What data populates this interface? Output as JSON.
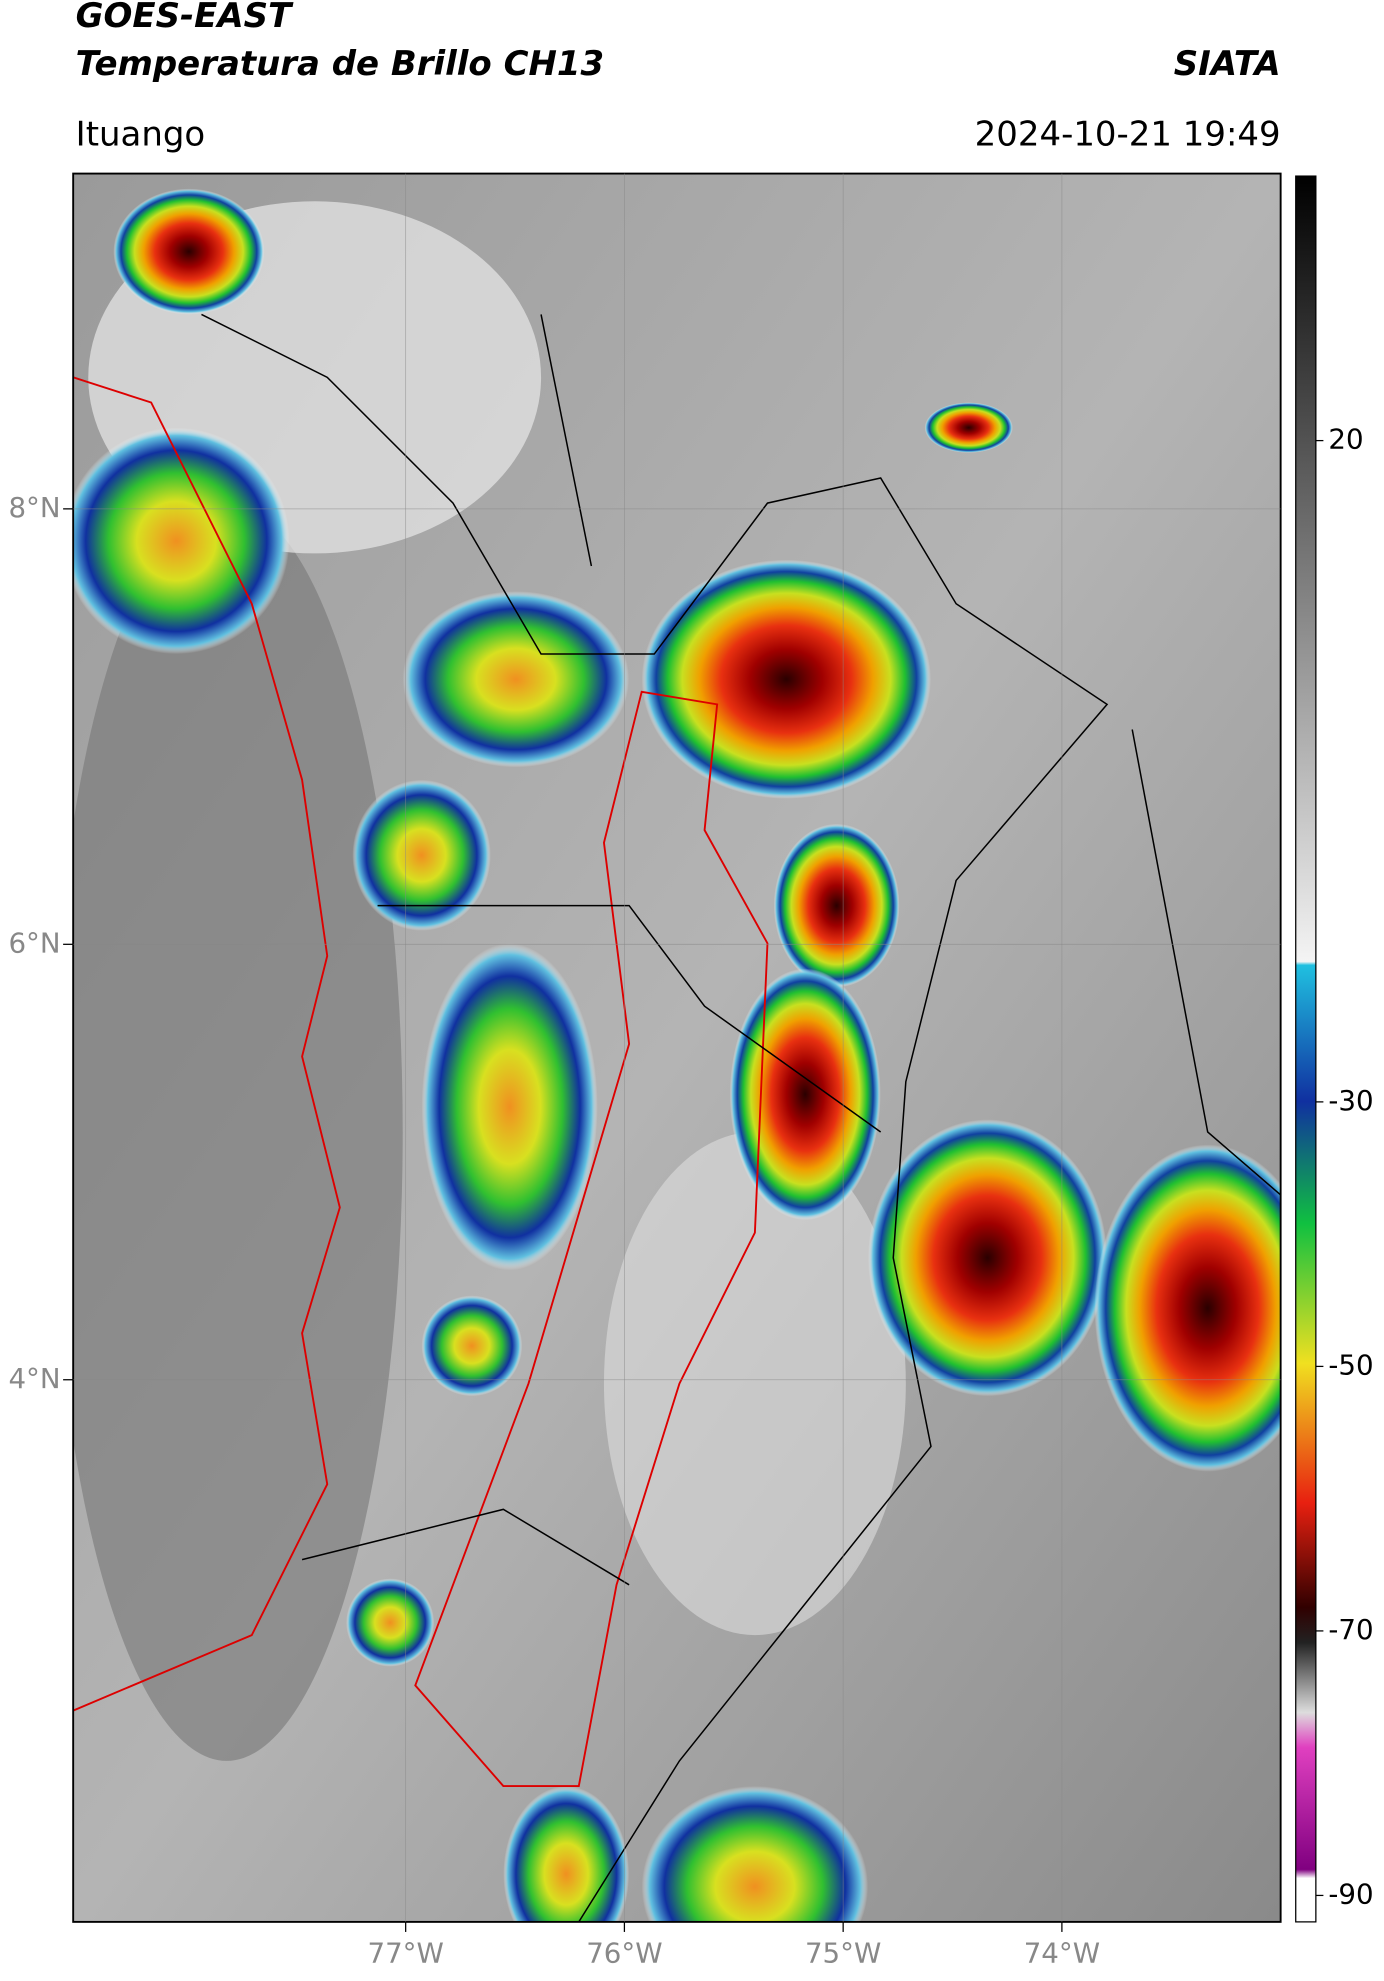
{
  "chart_data": {
    "type": "map",
    "title": "GOES-EAST",
    "subtitle": "Temperatura de Brillo CH13",
    "source": "SIATA",
    "location": "Ituango",
    "datetime": "2024-10-21 19:49",
    "xlim": [
      -78.52,
      -73.0
    ],
    "ylim": [
      1.51,
      9.54
    ],
    "xticks": [
      {
        "value": -77,
        "label": "77°W"
      },
      {
        "value": -76,
        "label": "76°W"
      },
      {
        "value": -75,
        "label": "75°W"
      },
      {
        "value": -74,
        "label": "74°W"
      }
    ],
    "yticks": [
      {
        "value": 4,
        "label": "4°N"
      },
      {
        "value": 6,
        "label": "6°N"
      },
      {
        "value": 8,
        "label": "8°N"
      }
    ],
    "grid": true,
    "colorbar": {
      "lim": [
        -92,
        40
      ],
      "ticks": [
        20,
        -30,
        -50,
        -70,
        -90
      ]
    }
  }
}
